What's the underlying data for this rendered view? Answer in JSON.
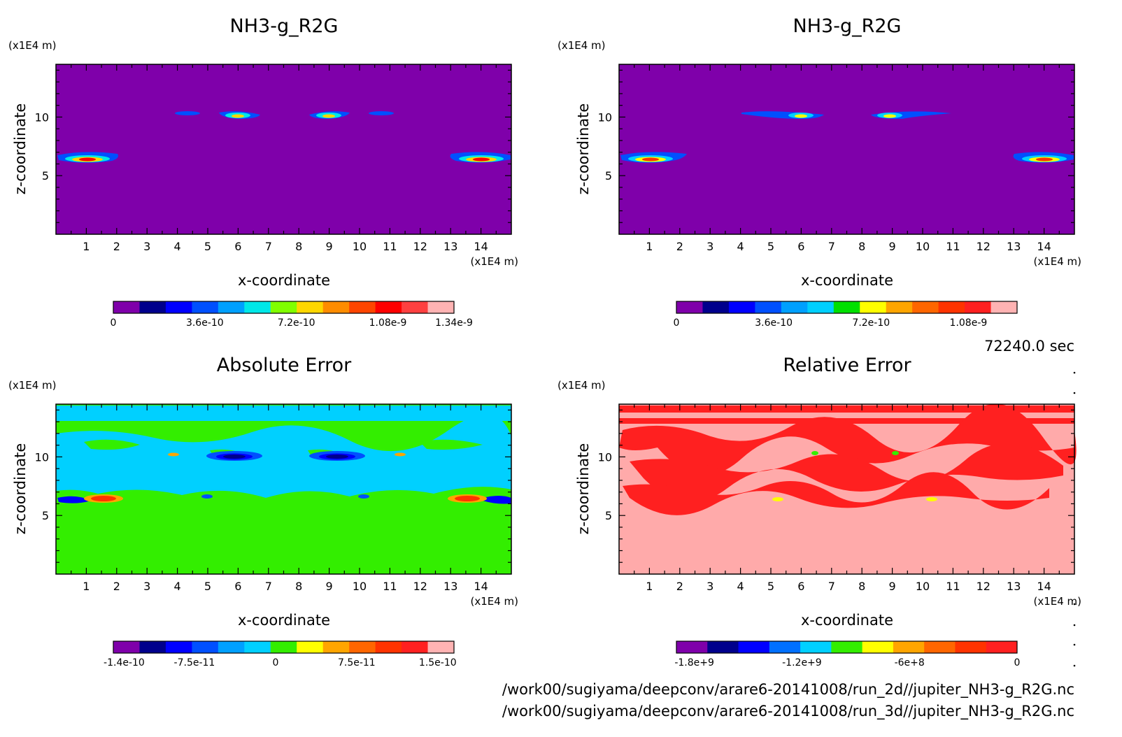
{
  "time_label": "72240.0 sec",
  "file_lines": [
    "/work00/sugiyama/deepconv/arare6-20141008/run_2d//jupiter_NH3-g_R2G.nc",
    "/work00/sugiyama/deepconv/arare6-20141008/run_3d//jupiter_NH3-g_R2G.nc"
  ],
  "chart_data": [
    {
      "type": "heatmap",
      "title": "NH3-g_R2G",
      "xlabel": "x-coordinate",
      "ylabel": "z-coordinate",
      "x_unit": "(x1E4 m)",
      "y_unit": "(x1E4 m)",
      "xlim": [
        0,
        15
      ],
      "ylim": [
        0,
        14.5
      ],
      "xticks": [
        "1",
        "2",
        "3",
        "4",
        "5",
        "6",
        "7",
        "8",
        "9",
        "10",
        "11",
        "12",
        "13",
        "14"
      ],
      "yticks": [
        "5",
        "10"
      ],
      "background_color": "#7f00aa",
      "colorbar": {
        "colors": [
          "#7f00aa",
          "#00008c",
          "#0000ff",
          "#0050ff",
          "#00a0ff",
          "#00e8e8",
          "#80ff00",
          "#ffd700",
          "#ff8c00",
          "#ff4500",
          "#ff0000",
          "#ff4040",
          "#ffb3b3"
        ],
        "tick_labels": [
          "0",
          "3.6e-10",
          "7.2e-10",
          "1.08e-9",
          "1.34e-9"
        ],
        "tick_values": [
          0,
          3.6e-10,
          7.2e-10,
          1.08e-09,
          1.34e-09
        ],
        "range": [
          0,
          1.34e-09
        ]
      },
      "features": [
        {
          "x": 1.1,
          "z": 6.4,
          "peak": 1.3e-09
        },
        {
          "x": 13.7,
          "z": 6.4,
          "peak": 1.3e-09
        },
        {
          "x": 6.0,
          "z": 10.3,
          "peak": 9e-10
        },
        {
          "x": 8.9,
          "z": 10.3,
          "peak": 9e-10
        },
        {
          "x": 4.0,
          "z": 10.5,
          "peak": 3e-10
        },
        {
          "x": 11.0,
          "z": 10.5,
          "peak": 3e-10
        }
      ]
    },
    {
      "type": "heatmap",
      "title": "NH3-g_R2G",
      "xlabel": "x-coordinate",
      "ylabel": "z-coordinate",
      "x_unit": "(x1E4 m)",
      "y_unit": "(x1E4 m)",
      "xlim": [
        0,
        15
      ],
      "ylim": [
        0,
        14.5
      ],
      "xticks": [
        "1",
        "2",
        "3",
        "4",
        "5",
        "6",
        "7",
        "8",
        "9",
        "10",
        "11",
        "12",
        "13",
        "14"
      ],
      "yticks": [
        "5",
        "10"
      ],
      "background_color": "#7f00aa",
      "colorbar": {
        "colors": [
          "#7f00aa",
          "#00008c",
          "#0000ff",
          "#0050ff",
          "#00a0ff",
          "#00d0ff",
          "#00e000",
          "#ffff00",
          "#ffa500",
          "#ff6600",
          "#ff3300",
          "#ff2020",
          "#ffb3b3"
        ],
        "tick_labels": [
          "0",
          "3.6e-10",
          "7.2e-10",
          "1.08e-9"
        ],
        "tick_values": [
          0,
          3.6e-10,
          7.2e-10,
          1.08e-09
        ],
        "range": [
          0,
          1.26e-09
        ]
      },
      "features": [
        {
          "x": 1.1,
          "z": 6.4,
          "peak": 1.3e-09
        },
        {
          "x": 13.7,
          "z": 6.4,
          "peak": 1.3e-09
        },
        {
          "x": 6.0,
          "z": 10.3,
          "peak": 9e-10
        },
        {
          "x": 8.9,
          "z": 10.3,
          "peak": 9e-10
        },
        {
          "x": 4.8,
          "z": 10.5,
          "peak": 3e-10
        },
        {
          "x": 10.5,
          "z": 10.5,
          "peak": 3e-10
        }
      ]
    },
    {
      "type": "heatmap",
      "title": "Absolute Error",
      "xlabel": "x-coordinate",
      "ylabel": "z-coordinate",
      "x_unit": "(x1E4 m)",
      "y_unit": "(x1E4 m)",
      "xlim": [
        0,
        15
      ],
      "ylim": [
        0,
        14.5
      ],
      "xticks": [
        "1",
        "2",
        "3",
        "4",
        "5",
        "6",
        "7",
        "8",
        "9",
        "10",
        "11",
        "12",
        "13",
        "14"
      ],
      "yticks": [
        "5",
        "10"
      ],
      "background_color": "#33ee00",
      "colorbar": {
        "colors": [
          "#7f00aa",
          "#00008c",
          "#0000ff",
          "#0050ff",
          "#00a0ff",
          "#00d0ff",
          "#33ee00",
          "#ffff00",
          "#ffa500",
          "#ff6600",
          "#ff3300",
          "#ff2020",
          "#ffb3b3"
        ],
        "tick_labels": [
          "-1.4e-10",
          "-7.5e-11",
          "0",
          "7.5e-11",
          "1.5e-10"
        ],
        "tick_values": [
          -1.4e-10,
          -7.5e-11,
          0,
          7.5e-11,
          1.5e-10
        ],
        "range": [
          -1.5e-10,
          1.65e-10
        ]
      },
      "features": [
        {
          "x": 1.6,
          "z": 6.5,
          "peak": 1.3e-10
        },
        {
          "x": 13.3,
          "z": 6.5,
          "peak": 1.3e-10
        },
        {
          "x": 5.8,
          "z": 10.3,
          "peak": -1.3e-10
        },
        {
          "x": 9.2,
          "z": 10.3,
          "peak": -1.3e-10
        }
      ]
    },
    {
      "type": "heatmap",
      "title": "Relative Error",
      "xlabel": "x-coordinate",
      "ylabel": "z-coordinate",
      "x_unit": "(x1E4 m)",
      "y_unit": "(x1E4 m)",
      "xlim": [
        0,
        15
      ],
      "ylim": [
        0,
        14.5
      ],
      "xticks": [
        "1",
        "2",
        "3",
        "4",
        "5",
        "6",
        "7",
        "8",
        "9",
        "10",
        "11",
        "12",
        "13",
        "14"
      ],
      "yticks": [
        "5",
        "10"
      ],
      "background_color": "#ffaaaa",
      "colorbar": {
        "colors": [
          "#7f00aa",
          "#00008c",
          "#0000ff",
          "#0070ff",
          "#00d0ff",
          "#33ee00",
          "#ffff00",
          "#ffa500",
          "#ff6600",
          "#ff3300",
          "#ff2020"
        ],
        "tick_labels": [
          "-1.8e+9",
          "-1.2e+9",
          "-6e+8",
          "0"
        ],
        "tick_values": [
          -1800000000.0,
          -1200000000.0,
          -600000000.0,
          0
        ],
        "range": [
          -1900000000.0,
          0
        ]
      },
      "features": [
        {
          "x": 6.2,
          "z": 10.7,
          "peak": -500000000.0
        },
        {
          "x": 9.0,
          "z": 10.7,
          "peak": -500000000.0
        },
        {
          "x": 5.0,
          "z": 6.5,
          "peak": -500000000.0
        },
        {
          "x": 10.1,
          "z": 6.5,
          "peak": -500000000.0
        }
      ]
    }
  ]
}
